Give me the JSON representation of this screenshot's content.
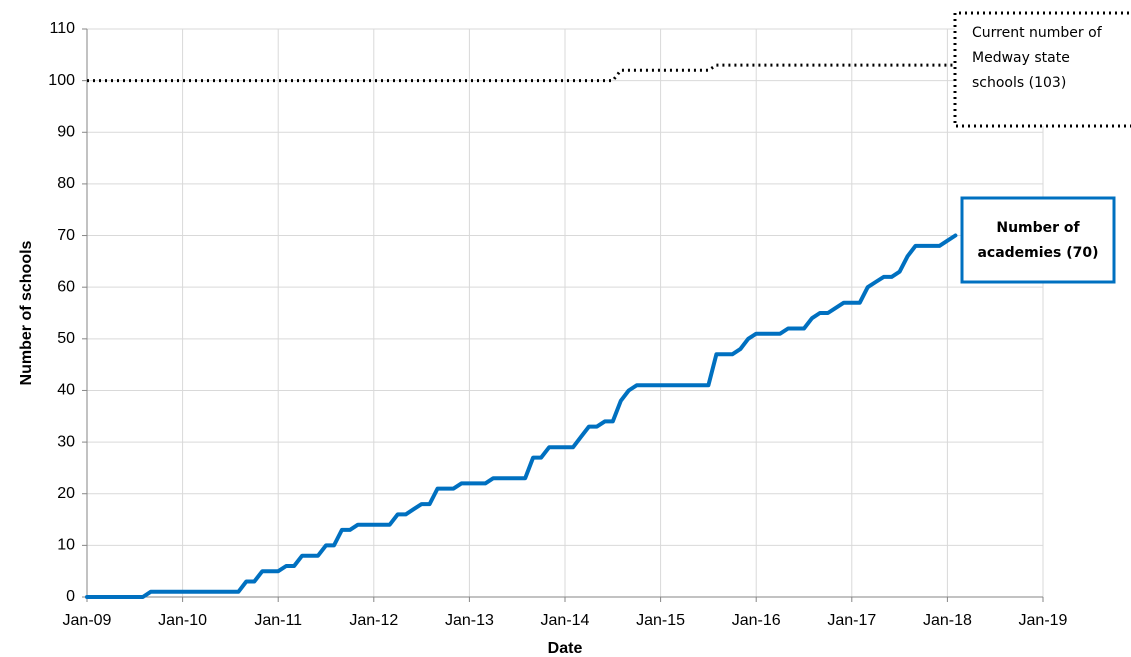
{
  "chart_data": {
    "type": "line",
    "x_label": "Date",
    "y_label": "Number of schools",
    "xlim": [
      "Jan-09",
      "Jan-19"
    ],
    "xticks": [
      "Jan-09",
      "Jan-10",
      "Jan-11",
      "Jan-12",
      "Jan-13",
      "Jan-14",
      "Jan-15",
      "Jan-16",
      "Jan-17",
      "Jan-18",
      "Jan-19"
    ],
    "ylim": [
      0,
      110
    ],
    "yticks": [
      0,
      10,
      20,
      30,
      40,
      50,
      60,
      70,
      80,
      90,
      100,
      110
    ],
    "grid": true,
    "series": [
      {
        "color": "#000000",
        "style": "dotted",
        "x": [
          "Jan-09",
          "Jul-14",
          "Aug-14",
          "Jul-15",
          "Aug-15",
          "Feb-18"
        ],
        "values": [
          100,
          100,
          102,
          102,
          103,
          103
        ],
        "annotation": [
          "Current number of",
          "Medway state",
          "schools (103)"
        ]
      },
      {
        "color": "#0070c0",
        "style": "solid",
        "x": [
          "Jan-09",
          "Aug-09",
          "Sep-09",
          "Aug-10",
          "Sep-10",
          "Oct-10",
          "Nov-10",
          "Jan-11",
          "Feb-11",
          "Mar-11",
          "Apr-11",
          "Jun-11",
          "Jul-11",
          "Aug-11",
          "Sep-11",
          "Oct-11",
          "Nov-11",
          "Mar-12",
          "Apr-12",
          "May-12",
          "Jun-12",
          "Jul-12",
          "Aug-12",
          "Sep-12",
          "Nov-12",
          "Dec-12",
          "Mar-13",
          "Apr-13",
          "Aug-13",
          "Sep-13",
          "Oct-13",
          "Nov-13",
          "Feb-14",
          "Mar-14",
          "Apr-14",
          "May-14",
          "Jun-14",
          "Jul-14",
          "Aug-14",
          "Sep-14",
          "Oct-14",
          "Jul-15",
          "Aug-15",
          "Oct-15",
          "Nov-15",
          "Dec-15",
          "Jan-16",
          "Apr-16",
          "May-16",
          "Jul-16",
          "Aug-16",
          "Sep-16",
          "Oct-16",
          "Nov-16",
          "Dec-16",
          "Feb-17",
          "Mar-17",
          "Apr-17",
          "May-17",
          "Jun-17",
          "Jul-17",
          "Aug-17",
          "Sep-17",
          "Dec-17",
          "Jan-18",
          "Feb-18"
        ],
        "values": [
          0,
          0,
          1,
          1,
          3,
          3,
          5,
          5,
          6,
          6,
          8,
          8,
          10,
          10,
          13,
          13,
          14,
          14,
          16,
          16,
          17,
          18,
          18,
          21,
          21,
          22,
          22,
          23,
          23,
          27,
          27,
          29,
          29,
          31,
          33,
          33,
          34,
          34,
          38,
          40,
          41,
          41,
          47,
          47,
          48,
          50,
          51,
          51,
          52,
          52,
          54,
          55,
          55,
          56,
          57,
          57,
          60,
          61,
          62,
          62,
          63,
          66,
          68,
          68,
          69,
          70
        ],
        "annotation": [
          "Number of",
          "academies (70)"
        ]
      }
    ]
  }
}
